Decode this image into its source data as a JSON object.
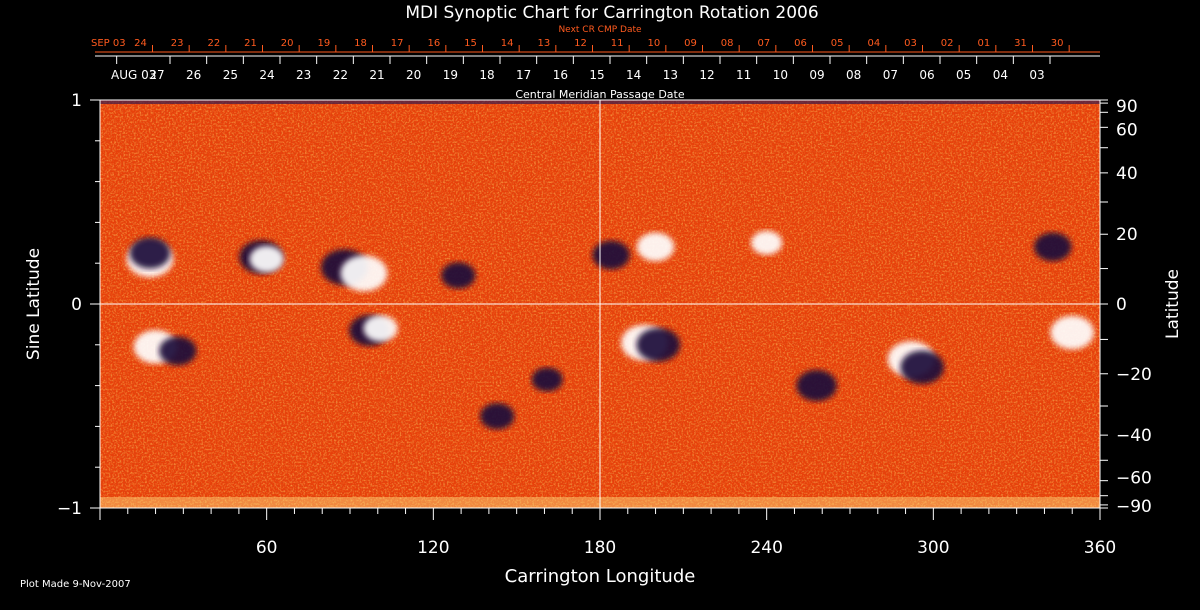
{
  "chart_data": {
    "type": "heatmap",
    "title": "MDI Synoptic Chart for Carrington Rotation 2006",
    "xlabel": "Carrington Longitude",
    "ylabel_left": "Sine Latitude",
    "ylabel_right": "Latitude",
    "top_label_orange": "Next CR CMP Date",
    "top_label_white": "Central Meridian Passage Date",
    "footer": "Plot Made  9-Nov-2007",
    "xlim": [
      0,
      360
    ],
    "ylim": [
      -1,
      1
    ],
    "x_ticks": [
      60,
      120,
      180,
      240,
      300,
      360
    ],
    "y_ticks_left": [
      {
        "value": 1,
        "label": "1"
      },
      {
        "value": 0,
        "label": "0"
      },
      {
        "value": -1,
        "label": "−1"
      }
    ],
    "y_ticks_right": [
      {
        "deg": 90,
        "label": "90"
      },
      {
        "deg": 60,
        "label": "60"
      },
      {
        "deg": 40,
        "label": "40"
      },
      {
        "deg": 20,
        "label": "20"
      },
      {
        "deg": 0,
        "label": "0"
      },
      {
        "deg": -20,
        "label": "−20"
      },
      {
        "deg": -40,
        "label": "−40"
      },
      {
        "deg": -60,
        "label": "−60"
      },
      {
        "deg": -90,
        "label": "−90"
      }
    ],
    "next_cr_dates": [
      {
        "longitude": 0,
        "label": "SEP 03"
      },
      {
        "longitude": 18.9,
        "label": "24"
      },
      {
        "longitude": 32.1,
        "label": "23"
      },
      {
        "longitude": 45.3,
        "label": "22"
      },
      {
        "longitude": 58.5,
        "label": "21"
      },
      {
        "longitude": 71.7,
        "label": "20"
      },
      {
        "longitude": 84.9,
        "label": "19"
      },
      {
        "longitude": 98.1,
        "label": "18"
      },
      {
        "longitude": 111.3,
        "label": "17"
      },
      {
        "longitude": 124.5,
        "label": "16"
      },
      {
        "longitude": 137.7,
        "label": "15"
      },
      {
        "longitude": 150.9,
        "label": "14"
      },
      {
        "longitude": 164.1,
        "label": "13"
      },
      {
        "longitude": 177.3,
        "label": "12"
      },
      {
        "longitude": 190.5,
        "label": "11"
      },
      {
        "longitude": 203.7,
        "label": "10"
      },
      {
        "longitude": 216.9,
        "label": "09"
      },
      {
        "longitude": 230.1,
        "label": "08"
      },
      {
        "longitude": 243.3,
        "label": "07"
      },
      {
        "longitude": 256.5,
        "label": "06"
      },
      {
        "longitude": 269.7,
        "label": "05"
      },
      {
        "longitude": 282.9,
        "label": "04"
      },
      {
        "longitude": 296.1,
        "label": "03"
      },
      {
        "longitude": 309.3,
        "label": "02"
      },
      {
        "longitude": 322.5,
        "label": "01"
      },
      {
        "longitude": 335.7,
        "label": "31"
      },
      {
        "longitude": 348.9,
        "label": "30"
      }
    ],
    "cmp_dates": [
      {
        "longitude": 6,
        "label": "AUG 03"
      },
      {
        "longitude": 25.2,
        "label": "27"
      },
      {
        "longitude": 38.4,
        "label": "26"
      },
      {
        "longitude": 51.6,
        "label": "25"
      },
      {
        "longitude": 64.8,
        "label": "24"
      },
      {
        "longitude": 78.0,
        "label": "23"
      },
      {
        "longitude": 91.2,
        "label": "22"
      },
      {
        "longitude": 104.4,
        "label": "21"
      },
      {
        "longitude": 117.6,
        "label": "20"
      },
      {
        "longitude": 130.8,
        "label": "19"
      },
      {
        "longitude": 144.0,
        "label": "18"
      },
      {
        "longitude": 157.2,
        "label": "17"
      },
      {
        "longitude": 170.4,
        "label": "16"
      },
      {
        "longitude": 183.6,
        "label": "15"
      },
      {
        "longitude": 196.8,
        "label": "14"
      },
      {
        "longitude": 210.0,
        "label": "13"
      },
      {
        "longitude": 223.2,
        "label": "12"
      },
      {
        "longitude": 236.4,
        "label": "11"
      },
      {
        "longitude": 249.6,
        "label": "10"
      },
      {
        "longitude": 262.8,
        "label": "09"
      },
      {
        "longitude": 276.0,
        "label": "08"
      },
      {
        "longitude": 289.2,
        "label": "07"
      },
      {
        "longitude": 302.4,
        "label": "06"
      },
      {
        "longitude": 315.6,
        "label": "05"
      },
      {
        "longitude": 328.8,
        "label": "04"
      },
      {
        "longitude": 342.0,
        "label": "03"
      }
    ],
    "active_regions": [
      {
        "longitude": 18,
        "sinlat": 0.22,
        "polarity": "positive",
        "strength": 1.0
      },
      {
        "longitude": 18,
        "sinlat": 0.25,
        "polarity": "negative",
        "strength": 0.8
      },
      {
        "longitude": 58,
        "sinlat": 0.23,
        "polarity": "negative",
        "strength": 0.9
      },
      {
        "longitude": 60,
        "sinlat": 0.22,
        "polarity": "positive",
        "strength": 0.6
      },
      {
        "longitude": 88,
        "sinlat": 0.18,
        "polarity": "negative",
        "strength": 1.0
      },
      {
        "longitude": 95,
        "sinlat": 0.15,
        "polarity": "positive",
        "strength": 1.0
      },
      {
        "longitude": 129,
        "sinlat": 0.14,
        "polarity": "negative",
        "strength": 0.6
      },
      {
        "longitude": 20,
        "sinlat": -0.21,
        "polarity": "positive",
        "strength": 0.9
      },
      {
        "longitude": 28,
        "sinlat": -0.23,
        "polarity": "negative",
        "strength": 0.7
      },
      {
        "longitude": 97,
        "sinlat": -0.13,
        "polarity": "negative",
        "strength": 0.8
      },
      {
        "longitude": 101,
        "sinlat": -0.12,
        "polarity": "positive",
        "strength": 0.6
      },
      {
        "longitude": 196,
        "sinlat": -0.19,
        "polarity": "positive",
        "strength": 1.0
      },
      {
        "longitude": 201,
        "sinlat": -0.2,
        "polarity": "negative",
        "strength": 0.9
      },
      {
        "longitude": 184,
        "sinlat": 0.24,
        "polarity": "negative",
        "strength": 0.7
      },
      {
        "longitude": 200,
        "sinlat": 0.28,
        "polarity": "positive",
        "strength": 0.7
      },
      {
        "longitude": 258,
        "sinlat": -0.4,
        "polarity": "negative",
        "strength": 0.8
      },
      {
        "longitude": 292,
        "sinlat": -0.27,
        "polarity": "positive",
        "strength": 1.0
      },
      {
        "longitude": 296,
        "sinlat": -0.31,
        "polarity": "negative",
        "strength": 0.9
      },
      {
        "longitude": 343,
        "sinlat": 0.28,
        "polarity": "negative",
        "strength": 0.7
      },
      {
        "longitude": 350,
        "sinlat": -0.14,
        "polarity": "positive",
        "strength": 0.9
      },
      {
        "longitude": 143,
        "sinlat": -0.55,
        "polarity": "negative",
        "strength": 0.6
      },
      {
        "longitude": 161,
        "sinlat": -0.37,
        "polarity": "negative",
        "strength": 0.5
      },
      {
        "longitude": 240,
        "sinlat": 0.3,
        "polarity": "positive",
        "strength": 0.5
      }
    ],
    "colors": {
      "background": "#000000",
      "field_base": "#e8400a",
      "positive": "#ffffff",
      "negative": "#1a0a3a",
      "axes": "#ffffff",
      "orange_text": "#ff5a1e"
    },
    "grid": false
  }
}
